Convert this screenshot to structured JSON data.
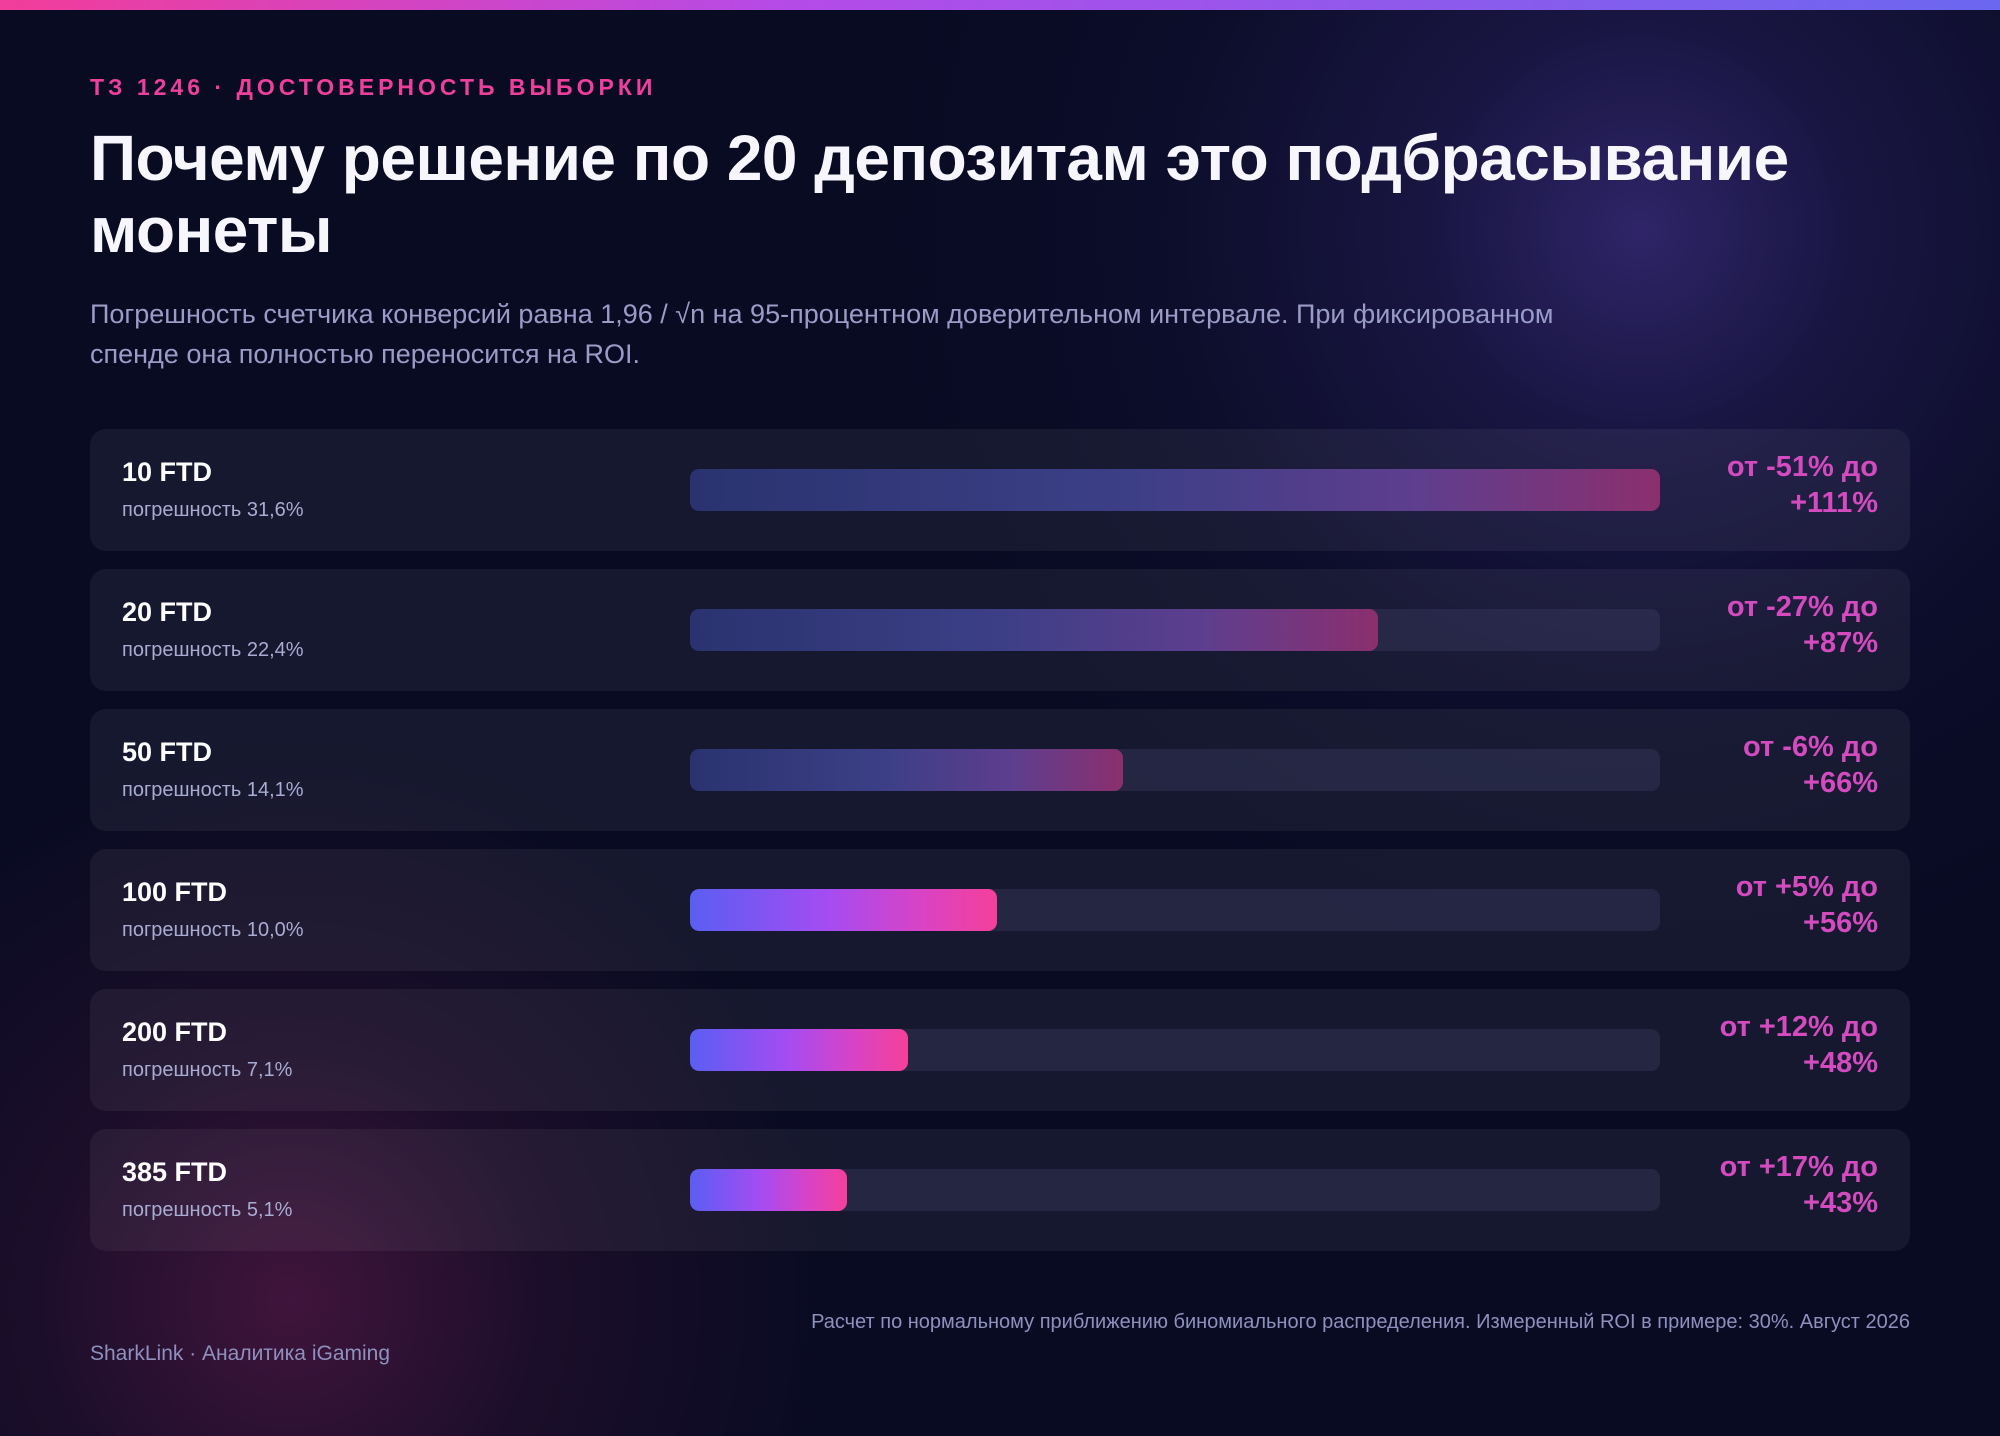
{
  "header": {
    "eyebrow": "ТЗ 1246 · ДОСТОВЕРНОСТЬ ВЫБОРКИ",
    "title": "Почему решение по 20 депозитам это подбрасывание монеты",
    "subtitle": "Погрешность счетчика конверсий равна 1,96 / √n на 95-процентном доверительном интервале. При фиксированном спенде она полностью переносится на ROI."
  },
  "chart_data": {
    "type": "bar",
    "orientation": "horizontal",
    "title": "Почему решение по 20 депозитам это подбрасывание монеты",
    "categories": [
      "10 FTD",
      "20 FTD",
      "50 FTD",
      "100 FTD",
      "200 FTD",
      "385 FTD"
    ],
    "values": [
      31.6,
      22.4,
      14.1,
      10.0,
      7.1,
      5.1
    ],
    "value_unit": "%",
    "xlim": [
      0,
      31.6
    ],
    "grid": false,
    "legend": "none",
    "row_sublabels": [
      "погрешность 31,6%",
      "погрешность 22,4%",
      "погрешность 14,1%",
      "погрешность 10,0%",
      "погрешность 7,1%",
      "погрешность 5,1%"
    ],
    "range_labels": [
      [
        "от -51% до",
        "+111%"
      ],
      [
        "от -27% до",
        "+87%"
      ],
      [
        "от -6% до",
        "+66%"
      ],
      [
        "от +5% до",
        "+56%"
      ],
      [
        "от +12% до",
        "+48%"
      ],
      [
        "от +17% до",
        "+43%"
      ]
    ],
    "styles": [
      "dim",
      "dim",
      "dim",
      "bright",
      "bright",
      "bright"
    ]
  },
  "footer": {
    "left": "SharkLink · Аналитика iGaming",
    "note": "Расчет по нормальному приближению биномиального распределения. Измеренный ROI в примере: 30%. Август 2026"
  },
  "colors": {
    "accent_pink": "#ee3f9c",
    "range_text": "#d44bc0",
    "bright_start": "#5a5ef2",
    "bright_end": "#f5409a",
    "dim_start": "#2a3370",
    "dim_end": "#8b2f6e"
  }
}
